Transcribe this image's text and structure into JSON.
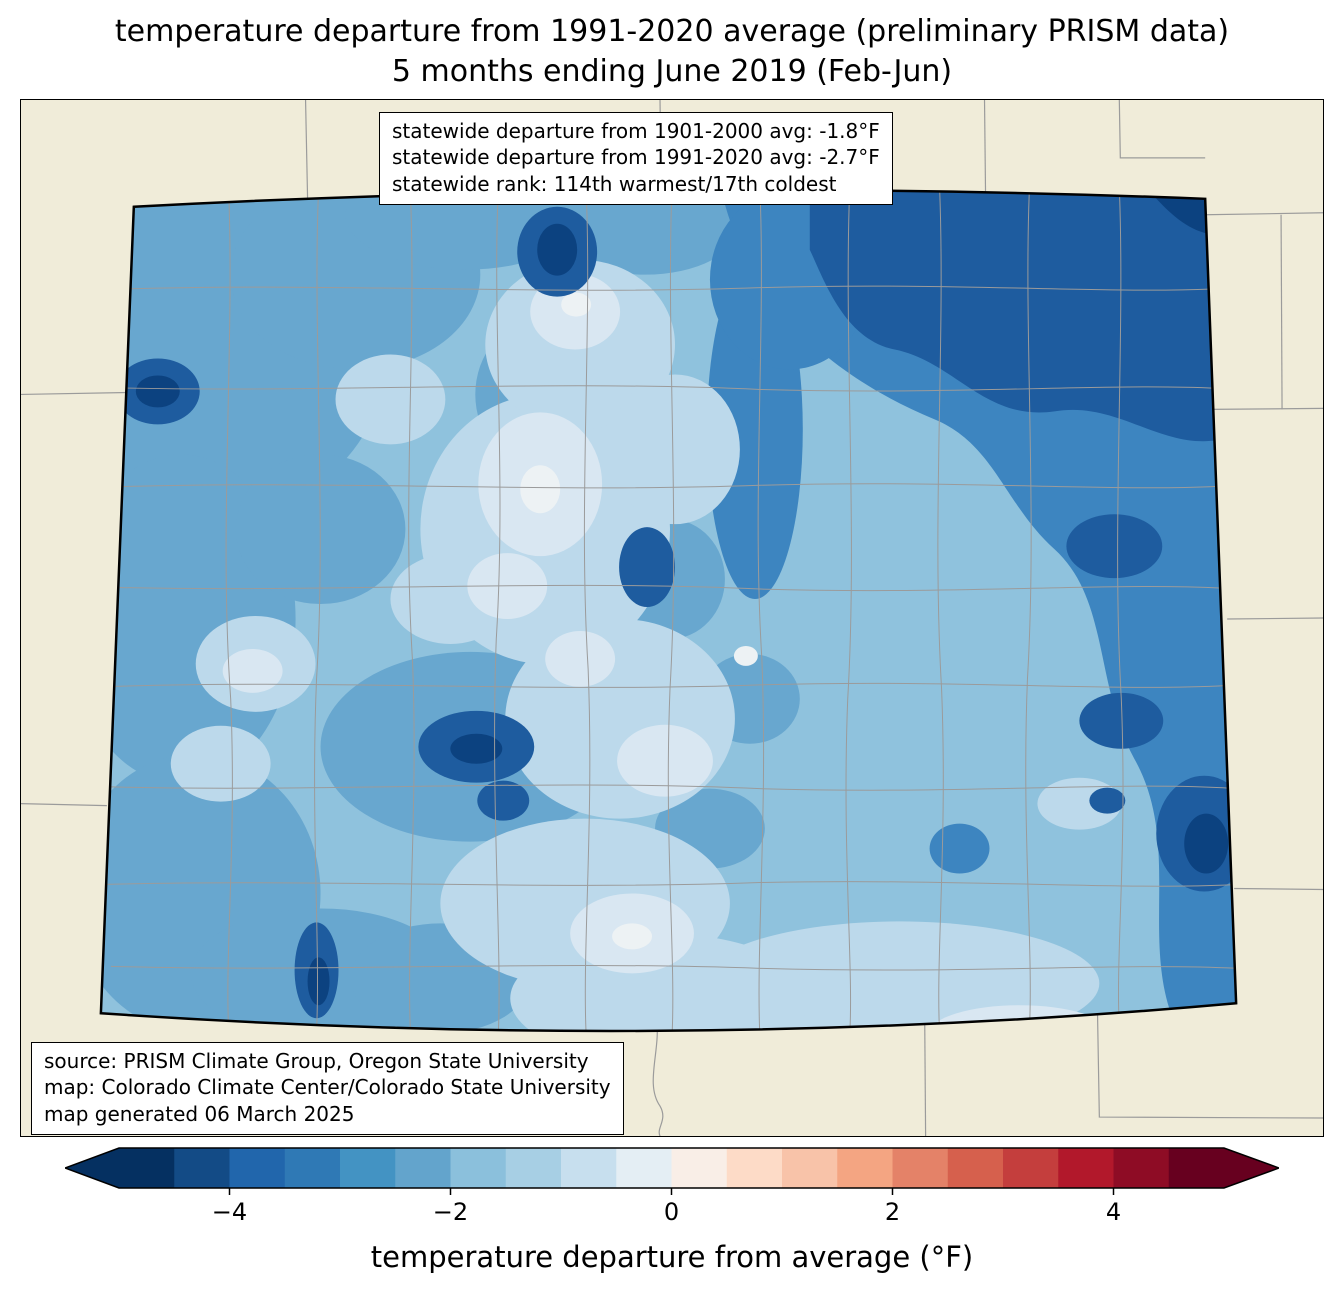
{
  "title": {
    "line1": "temperature departure from 1991-2020 average (preliminary PRISM data)",
    "line2": "5 months ending June 2019 (Feb-Jun)"
  },
  "stats_box": {
    "line1": "statewide departure from 1901-2000 avg: -1.8°F",
    "line2": "statewide departure from 1991-2020 avg: -2.7°F",
    "line3": "statewide rank: 114th warmest/17th coldest"
  },
  "source_box": {
    "line1": "source: PRISM Climate Group, Oregon State University",
    "line2": "map: Colorado Climate Center/Colorado State University",
    "line3": "map generated 06 March 2025"
  },
  "colorbar": {
    "label": "temperature departure from average (°F)",
    "min": -5,
    "max": 5,
    "step": 0.5,
    "under_color": "#053061",
    "over_color": "#67001f",
    "segment_colors": [
      "#053061",
      "#134b86",
      "#2166ac",
      "#2f79b5",
      "#4393c3",
      "#63a4cc",
      "#8bc0dc",
      "#a7cfe4",
      "#c7dfee",
      "#e4eef4",
      "#f9eee7",
      "#fddbc7",
      "#f8c3a9",
      "#f4a582",
      "#e48268",
      "#d6604d",
      "#c43e3d",
      "#b2182b",
      "#8e0c25",
      "#67001f"
    ],
    "ticks": [
      {
        "value": -4,
        "label": "−4"
      },
      {
        "value": -2,
        "label": "−2"
      },
      {
        "value": 0,
        "label": "0"
      },
      {
        "value": 2,
        "label": "2"
      },
      {
        "value": 4,
        "label": "4"
      }
    ]
  },
  "map": {
    "state": "Colorado",
    "land_color": "#f0ecd9",
    "county_line_color": "#9b9b9b",
    "state_border_color": "#000000",
    "palette": {
      "m50": "#0c4280",
      "m40": "#1e5c9f",
      "m35": "#3d85c0",
      "m30": "#68a7cf",
      "m25": "#8fc2dd",
      "m20": "#bcd9eb",
      "m15": "#d9e7f2",
      "m10": "#edf2f4"
    }
  }
}
